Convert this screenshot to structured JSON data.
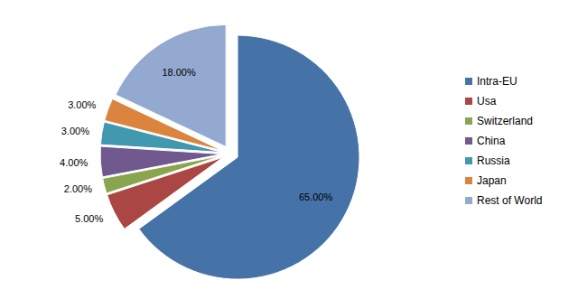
{
  "chart_data": {
    "type": "pie",
    "categories": [
      "Intra-EU",
      "Usa",
      "Switzerland",
      "China",
      "Russia",
      "Japan",
      "Rest of World"
    ],
    "values": [
      65,
      5,
      2,
      4,
      3,
      3,
      18
    ],
    "value_labels": [
      "65.00%",
      "5.00%",
      "2.00%",
      "4.00%",
      "3.00%",
      "3.00%",
      "18.00%"
    ],
    "colors": [
      "#4572a7",
      "#aa4643",
      "#89a54e",
      "#71588f",
      "#4198af",
      "#db843d",
      "#93a9cf"
    ],
    "data_labels": true,
    "legend": "right"
  }
}
